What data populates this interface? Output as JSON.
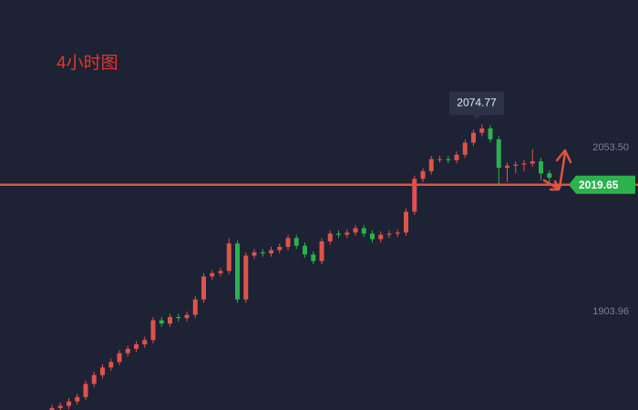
{
  "chart_data": {
    "type": "candlestick",
    "title": "4小时图",
    "open": [
      1812,
      1816,
      1818,
      1822,
      1826,
      1838,
      1846,
      1853,
      1858,
      1866,
      1870,
      1874,
      1878,
      1896,
      1893,
      1899,
      1898,
      1901,
      1915,
      1936,
      1939,
      1941,
      1966,
      1915,
      1955,
      1958,
      1957,
      1960,
      1963,
      1971,
      1964,
      1956,
      1950,
      1968,
      1975,
      1974,
      1976,
      1980,
      1975,
      1970,
      1974,
      1975,
      1976,
      1995,
      2025,
      2032,
      2043,
      2043,
      2042,
      2047,
      2058,
      2067,
      2071,
      2061,
      2035,
      2037,
      2038,
      2039,
      2041,
      2030
    ],
    "high": [
      1819,
      1821,
      1825,
      1829,
      1841,
      1849,
      1856,
      1861,
      1869,
      1873,
      1877,
      1881,
      1899,
      1899,
      1902,
      1902,
      1904,
      1918,
      1939,
      1942,
      1944,
      1971,
      1969,
      1958,
      1961,
      1961,
      1963,
      1966,
      1974,
      1974,
      1967,
      1959,
      1971,
      1978,
      1978,
      1979,
      1983,
      1983,
      1978,
      1977,
      1978,
      1979,
      1998,
      2028,
      2035,
      2046,
      2046,
      2046,
      2050,
      2061,
      2070,
      2074.77,
      2074,
      2064,
      2040,
      2041,
      2042,
      2052,
      2044,
      2033
    ],
    "low": [
      1809,
      1813,
      1815,
      1819,
      1823,
      1835,
      1843,
      1850,
      1855,
      1863,
      1867,
      1871,
      1875,
      1890,
      1890,
      1895,
      1895,
      1898,
      1912,
      1933,
      1936,
      1938,
      1912,
      1912,
      1952,
      1954,
      1954,
      1957,
      1960,
      1961,
      1953,
      1947,
      1947,
      1965,
      1971,
      1971,
      1973,
      1972,
      1967,
      1967,
      1971,
      1972,
      1973,
      1992,
      2022,
      2029,
      2040,
      2039,
      2039,
      2044,
      2055,
      2064,
      2058,
      2020,
      2022,
      2030,
      2032,
      2036,
      2024,
      2022
    ],
    "close": [
      1816,
      1818,
      1822,
      1826,
      1838,
      1846,
      1853,
      1858,
      1866,
      1870,
      1874,
      1878,
      1896,
      1893,
      1899,
      1898,
      1901,
      1915,
      1936,
      1939,
      1941,
      1966,
      1915,
      1955,
      1958,
      1957,
      1960,
      1963,
      1971,
      1964,
      1956,
      1950,
      1968,
      1975,
      1974,
      1976,
      1980,
      1975,
      1970,
      1974,
      1975,
      1976,
      1995,
      2025,
      2032,
      2043,
      2043,
      2042,
      2047,
      2058,
      2067,
      2071,
      2061,
      2035,
      2037,
      2038,
      2039,
      2041,
      2030,
      2026
    ],
    "up_color": "#e0534a",
    "down_color": "#2bb24c",
    "ylim": [
      1814.2,
      2188.1
    ],
    "yticks": [
      {
        "value": 2053.5,
        "label": "2053.50"
      },
      1903.96
    ],
    "hline": {
      "value": 2019.65,
      "label": "2019.65",
      "color": "#e0533f"
    },
    "annotation": {
      "value": 2074.77,
      "label": "2074.77"
    }
  }
}
